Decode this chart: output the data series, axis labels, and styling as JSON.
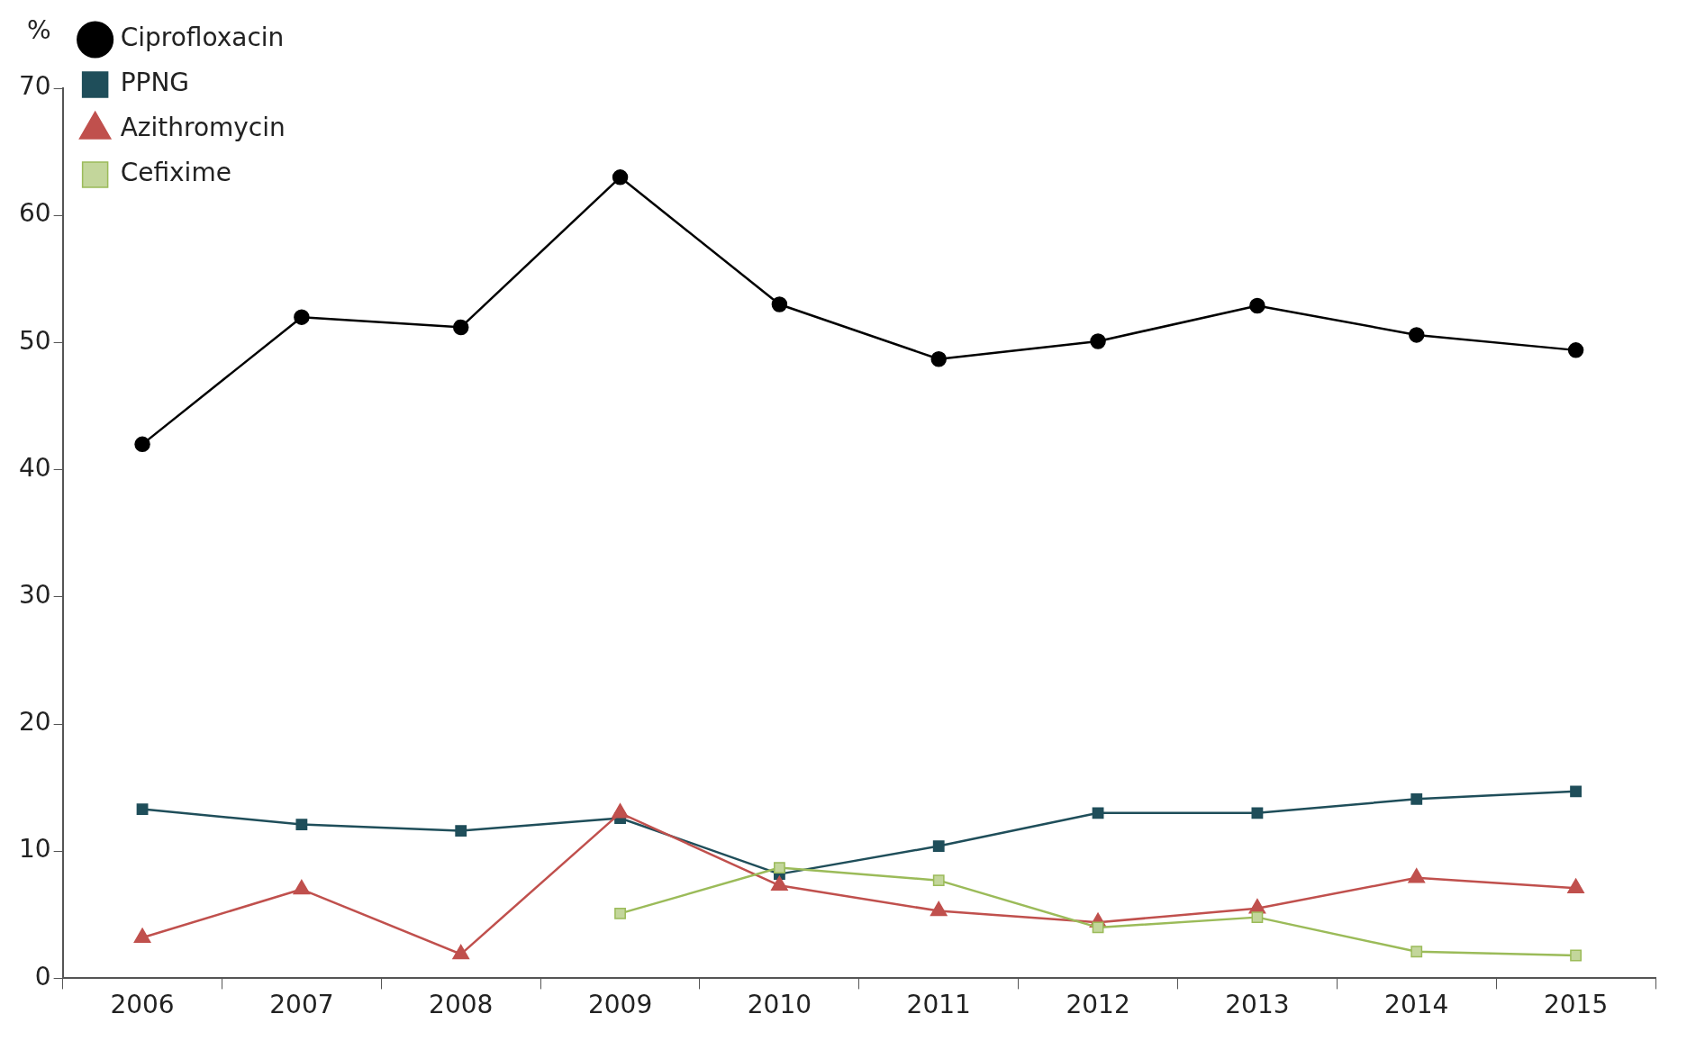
{
  "chart_data": {
    "type": "line",
    "ylabel": "%",
    "categories": [
      "2006",
      "2007",
      "2008",
      "2009",
      "2010",
      "2011",
      "2012",
      "2013",
      "2014",
      "2015"
    ],
    "series": [
      {
        "name": "Ciprofloxacin",
        "color": "#000000",
        "marker": "circle",
        "values": [
          42.0,
          52.0,
          51.2,
          63.0,
          53.0,
          48.7,
          50.1,
          52.9,
          50.6,
          49.4
        ]
      },
      {
        "name": "PPNG",
        "color": "#1f4e5a",
        "marker": "square",
        "values": [
          13.3,
          12.1,
          11.6,
          12.6,
          8.2,
          10.4,
          13.0,
          13.0,
          14.1,
          14.7
        ]
      },
      {
        "name": "Azithromycin",
        "color": "#c0504d",
        "marker": "triangle",
        "values": [
          3.2,
          7.0,
          1.9,
          13.0,
          7.3,
          5.3,
          4.4,
          5.5,
          7.9,
          7.1
        ]
      },
      {
        "name": "Cefixime",
        "color": "#9bbb59",
        "marker": "square",
        "values": [
          null,
          null,
          null,
          5.1,
          8.7,
          7.7,
          4.0,
          4.8,
          2.1,
          1.8
        ]
      }
    ],
    "ylim": [
      0,
      70
    ],
    "yticks": [
      0,
      10,
      20,
      30,
      40,
      50,
      60,
      70
    ],
    "grid": false,
    "legend": "top left"
  }
}
